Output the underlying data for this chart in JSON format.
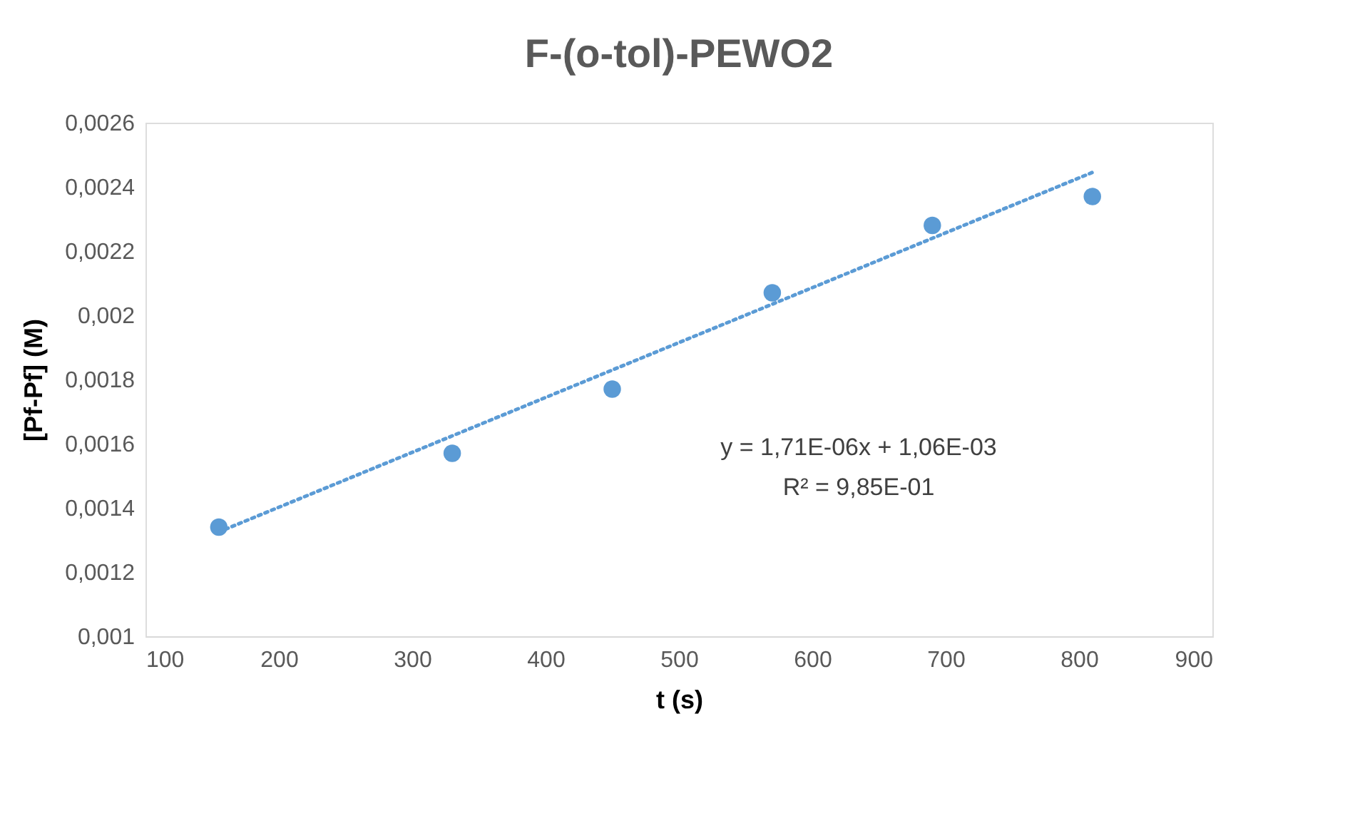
{
  "chart_data": {
    "type": "scatter",
    "title": "F-(o-tol)-PEWO2",
    "xlabel": "t (s)",
    "ylabel": "[Pf-Pf] (M)",
    "series": [
      {
        "color": "#5b9bd5",
        "x": [
          155,
          330,
          450,
          570,
          690,
          810
        ],
        "values": [
          0.00134,
          0.00157,
          0.00177,
          0.00207,
          0.00228,
          0.00237
        ],
        "marker": "circle"
      },
      {
        "type": "line",
        "color": "#5b9bd5",
        "x": [
          155,
          810
        ],
        "values": [
          0.001325,
          0.002445
        ],
        "line_style": "dotted",
        "marker": "none"
      }
    ],
    "xlim": [
      100,
      900
    ],
    "xticks": [
      100,
      200,
      300,
      400,
      500,
      600,
      700,
      800,
      900
    ],
    "ylim": [
      0.001,
      0.0026
    ],
    "yticks": [
      {
        "value": 0.001,
        "label": "0,001"
      },
      {
        "value": 0.0012,
        "label": "0,0012"
      },
      {
        "value": 0.0014,
        "label": "0,0014"
      },
      {
        "value": 0.0016,
        "label": "0,0016"
      },
      {
        "value": 0.0018,
        "label": "0,0018"
      },
      {
        "value": 0.002,
        "label": "0,002"
      },
      {
        "value": 0.0022,
        "label": "0,0022"
      },
      {
        "value": 0.0024,
        "label": "0,0024"
      },
      {
        "value": 0.0026,
        "label": "0,0026"
      }
    ],
    "annotations": [
      "y = 1,71E-06x + 1,06E-03",
      "R² = 9,85E-01"
    ],
    "grid": false
  }
}
